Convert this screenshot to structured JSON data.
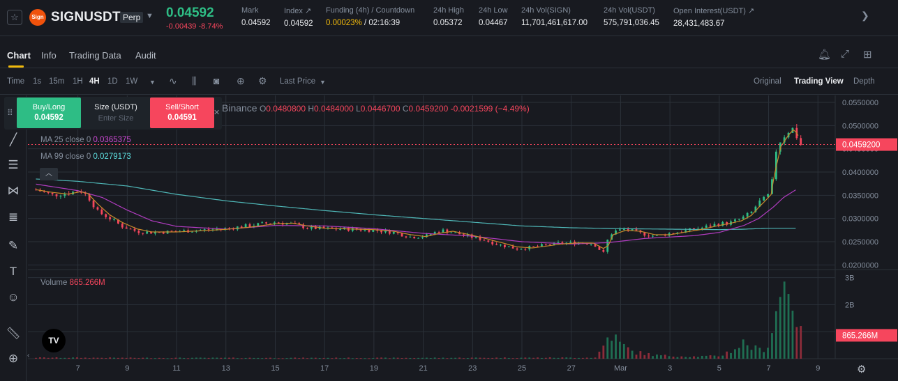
{
  "header": {
    "star_icon": "star-icon",
    "symbol": "SIGNUSDT",
    "perp_label": "Perp",
    "last_price": "0.04592",
    "change": "-0.00439",
    "change_pct": "-8.74%",
    "stats": [
      {
        "label": "Mark",
        "value": "0.04592"
      },
      {
        "label": "Index ↗",
        "value": "0.04592"
      },
      {
        "label": "Funding (4h) / Countdown",
        "value_funding": "0.00023%",
        "value_countdown": " / 02:16:39"
      },
      {
        "label": "24h High",
        "value": "0.05372"
      },
      {
        "label": "24h Low",
        "value": "0.04467"
      },
      {
        "label": "24h Vol(SIGN)",
        "value": "11,701,461,617.00"
      },
      {
        "label": "24h Vol(USDT)",
        "value": "575,791,036.45"
      },
      {
        "label": "Open Interest(USDT) ↗",
        "value": "28,431,483.67"
      }
    ]
  },
  "tabs": [
    {
      "label": "Chart",
      "active": true
    },
    {
      "label": "Info"
    },
    {
      "label": "Trading Data"
    },
    {
      "label": "Audit"
    }
  ],
  "toolbar": {
    "time_label": "Time",
    "intervals": [
      "1s",
      "15m",
      "1H",
      "4H",
      "1D",
      "1W"
    ],
    "active_interval": "4H",
    "price_type": "Last Price",
    "views": [
      "Original",
      "Trading View",
      "Depth"
    ],
    "active_view": "Trading View"
  },
  "order_panel": {
    "buy_label": "Buy/Long",
    "buy_price": "0.04592",
    "size_label": "Size (USDT)",
    "size_placeholder": "Enter Size",
    "sell_label": "Sell/Short",
    "sell_price": "0.04591"
  },
  "legend": {
    "exchange": "Binance",
    "o_label": "O",
    "o": "0.0480800",
    "h_label": "H",
    "h": "0.0484000",
    "l_label": "L",
    "l": "0.0446700",
    "c_label": "C",
    "c": "0.0459200",
    "change": "-0.0021599 (−4.49%)",
    "ma25_label": "MA 25 close 0",
    "ma25_value": "0.0365375",
    "ma99_label": "MA 99 close 0",
    "ma99_value": "0.0279173",
    "volume_label": "Volume",
    "volume_value": "865.266M"
  },
  "chart_data": {
    "type": "candlestick",
    "price_axis_ticks": [
      "0.0550000",
      "0.0500000",
      "0.0450000",
      "0.0400000",
      "0.0350000",
      "0.0300000",
      "0.0250000",
      "0.0200000"
    ],
    "price_range": [
      0.019,
      0.0565
    ],
    "current_price_label": "0.0459200",
    "volume_axis_ticks": [
      "3B",
      "2B",
      "1B"
    ],
    "volume_range": [
      0,
      3.3
    ],
    "current_volume_label": "865.266M",
    "x_ticks": [
      "7",
      "9",
      "11",
      "13",
      "15",
      "17",
      "19",
      "21",
      "23",
      "25",
      "27",
      "Mar",
      "3",
      "5",
      "7",
      "9"
    ],
    "x_tick_days": [
      7,
      9,
      11,
      13,
      15,
      17,
      19,
      21,
      23,
      25,
      27,
      29,
      31,
      33,
      35,
      37
    ],
    "x_range_days": [
      5.2,
      37.7
    ],
    "candle_interval_days": 0.1667,
    "close_path": [
      [
        5.3,
        0.0362
      ],
      [
        6.0,
        0.035
      ],
      [
        6.6,
        0.0355
      ],
      [
        7.1,
        0.036
      ],
      [
        7.4,
        0.0348
      ],
      [
        7.8,
        0.0315
      ],
      [
        8.3,
        0.03
      ],
      [
        8.8,
        0.0283
      ],
      [
        9.4,
        0.0272
      ],
      [
        10.0,
        0.027
      ],
      [
        11.0,
        0.0272
      ],
      [
        12.0,
        0.0275
      ],
      [
        13.0,
        0.0278
      ],
      [
        14.0,
        0.0285
      ],
      [
        15.0,
        0.0292
      ],
      [
        15.7,
        0.0288
      ],
      [
        16.3,
        0.028
      ],
      [
        17.0,
        0.0278
      ],
      [
        18.0,
        0.0277
      ],
      [
        19.0,
        0.0275
      ],
      [
        19.8,
        0.027
      ],
      [
        20.5,
        0.026
      ],
      [
        21.1,
        0.0262
      ],
      [
        21.7,
        0.0275
      ],
      [
        22.2,
        0.027
      ],
      [
        22.8,
        0.0262
      ],
      [
        23.4,
        0.0255
      ],
      [
        24.1,
        0.0243
      ],
      [
        24.8,
        0.0235
      ],
      [
        25.4,
        0.0238
      ],
      [
        26.0,
        0.0243
      ],
      [
        26.6,
        0.0247
      ],
      [
        27.3,
        0.0248
      ],
      [
        27.9,
        0.0246
      ],
      [
        28.3,
        0.0225
      ],
      [
        28.5,
        0.0258
      ],
      [
        28.7,
        0.0272
      ],
      [
        29.2,
        0.0277
      ],
      [
        29.8,
        0.0268
      ],
      [
        30.4,
        0.0262
      ],
      [
        31.0,
        0.0268
      ],
      [
        31.6,
        0.0273
      ],
      [
        32.3,
        0.028
      ],
      [
        32.9,
        0.0288
      ],
      [
        33.4,
        0.029
      ],
      [
        33.9,
        0.03
      ],
      [
        34.3,
        0.0313
      ],
      [
        34.6,
        0.0335
      ],
      [
        34.9,
        0.0345
      ],
      [
        35.1,
        0.0358
      ],
      [
        35.25,
        0.044
      ],
      [
        35.5,
        0.047
      ],
      [
        35.8,
        0.0488
      ],
      [
        36.0,
        0.0494
      ],
      [
        36.15,
        0.0475
      ],
      [
        36.3,
        0.0459
      ]
    ],
    "ma25_path": [
      [
        5.3,
        0.0374
      ],
      [
        7.0,
        0.036
      ],
      [
        8.0,
        0.0345
      ],
      [
        9.0,
        0.0318
      ],
      [
        10.0,
        0.0295
      ],
      [
        11.0,
        0.0283
      ],
      [
        13.0,
        0.0277
      ],
      [
        15.0,
        0.0285
      ],
      [
        17.0,
        0.0284
      ],
      [
        19.0,
        0.0278
      ],
      [
        21.0,
        0.0268
      ],
      [
        23.0,
        0.0262
      ],
      [
        25.0,
        0.025
      ],
      [
        27.0,
        0.0245
      ],
      [
        28.5,
        0.0248
      ],
      [
        30.0,
        0.0257
      ],
      [
        32.0,
        0.0263
      ],
      [
        33.0,
        0.027
      ],
      [
        34.0,
        0.0285
      ],
      [
        34.6,
        0.03
      ],
      [
        35.2,
        0.0325
      ],
      [
        35.6,
        0.0345
      ],
      [
        36.2,
        0.0365
      ]
    ],
    "ma99_path": [
      [
        5.3,
        0.0385
      ],
      [
        7.0,
        0.038
      ],
      [
        9.0,
        0.037
      ],
      [
        11.0,
        0.0352
      ],
      [
        13.0,
        0.0338
      ],
      [
        15.0,
        0.0327
      ],
      [
        17.0,
        0.0317
      ],
      [
        19.0,
        0.0308
      ],
      [
        21.0,
        0.03
      ],
      [
        23.0,
        0.0292
      ],
      [
        25.0,
        0.0284
      ],
      [
        27.0,
        0.028
      ],
      [
        29.0,
        0.0278
      ],
      [
        31.0,
        0.0277
      ],
      [
        33.0,
        0.0276
      ],
      [
        34.0,
        0.0277
      ],
      [
        35.0,
        0.0279
      ],
      [
        36.2,
        0.0279
      ]
    ],
    "volume_path": [
      [
        5.3,
        0.04
      ],
      [
        10.0,
        0.03
      ],
      [
        20.0,
        0.03
      ],
      [
        28.0,
        0.04
      ],
      [
        28.35,
        0.55
      ],
      [
        28.6,
        1.0
      ],
      [
        28.9,
        0.6
      ],
      [
        29.5,
        0.25
      ],
      [
        30.5,
        0.12
      ],
      [
        32.0,
        0.08
      ],
      [
        33.0,
        0.1
      ],
      [
        33.6,
        0.35
      ],
      [
        34.0,
        0.6
      ],
      [
        34.6,
        0.3
      ],
      [
        35.0,
        0.5
      ],
      [
        35.25,
        1.6
      ],
      [
        35.6,
        2.7
      ],
      [
        35.8,
        3.0
      ],
      [
        36.0,
        2.2
      ],
      [
        36.3,
        0.87
      ]
    ]
  }
}
